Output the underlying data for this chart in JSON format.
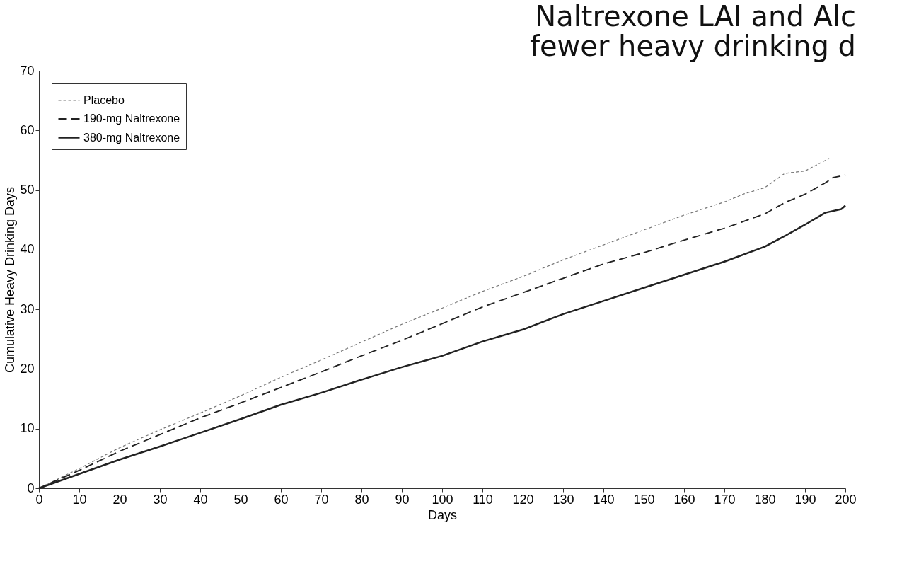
{
  "chart_data": {
    "type": "line",
    "title": [
      "Naltrexone LAI and Alc",
      "fewer heavy drinking d"
    ],
    "xlabel": "Days",
    "ylabel": "Cumulative Heavy Drinking Days",
    "xlim": [
      0,
      200
    ],
    "xticks": [
      0,
      10,
      20,
      30,
      40,
      50,
      60,
      70,
      80,
      90,
      100,
      110,
      120,
      130,
      140,
      150,
      160,
      170,
      180,
      190,
      200
    ],
    "ylim": [
      0,
      70
    ],
    "yticks": [
      0,
      10,
      20,
      30,
      40,
      50,
      60,
      70
    ],
    "grid": false,
    "legend": "top left",
    "marker": "none",
    "series": [
      {
        "name": "Placebo",
        "color": "#777777",
        "line_style": "dotted",
        "x": [
          0,
          10,
          20,
          30,
          40,
          50,
          60,
          70,
          80,
          90,
          100,
          110,
          120,
          130,
          140,
          150,
          160,
          170,
          175,
          180,
          185,
          190,
          196
        ],
        "values": [
          0,
          3.3,
          6.8,
          9.8,
          12.6,
          15.5,
          18.6,
          21.5,
          24.5,
          27.5,
          30.2,
          33,
          35.5,
          38.3,
          40.8,
          43.3,
          45.8,
          48,
          49.4,
          50.4,
          52.8,
          53.2,
          55.3
        ]
      },
      {
        "name": "190-mg Naltrexone",
        "color": "#222222",
        "line_style": "dashed",
        "x": [
          0,
          10,
          20,
          30,
          40,
          50,
          60,
          70,
          80,
          90,
          100,
          110,
          120,
          130,
          140,
          150,
          160,
          170,
          180,
          185,
          190,
          195,
          197,
          200
        ],
        "values": [
          0,
          3,
          6.2,
          9,
          11.8,
          14.3,
          16.9,
          19.5,
          22.2,
          24.8,
          27.6,
          30.4,
          32.8,
          35.2,
          37.6,
          39.5,
          41.6,
          43.6,
          46,
          47.9,
          49.3,
          51.2,
          52.1,
          52.5
        ]
      },
      {
        "name": "380-mg Naltrexone",
        "color": "#222222",
        "line_style": "solid",
        "x": [
          0,
          10,
          20,
          30,
          40,
          50,
          60,
          70,
          80,
          90,
          100,
          110,
          120,
          130,
          140,
          150,
          160,
          170,
          180,
          185,
          190,
          195,
          199,
          200
        ],
        "values": [
          0,
          2.4,
          4.8,
          7,
          9.3,
          11.6,
          14,
          16,
          18.2,
          20.3,
          22.2,
          24.6,
          26.6,
          29.2,
          31.4,
          33.6,
          35.8,
          38,
          40.5,
          42.3,
          44.2,
          46.2,
          46.8,
          47.4
        ]
      }
    ]
  }
}
